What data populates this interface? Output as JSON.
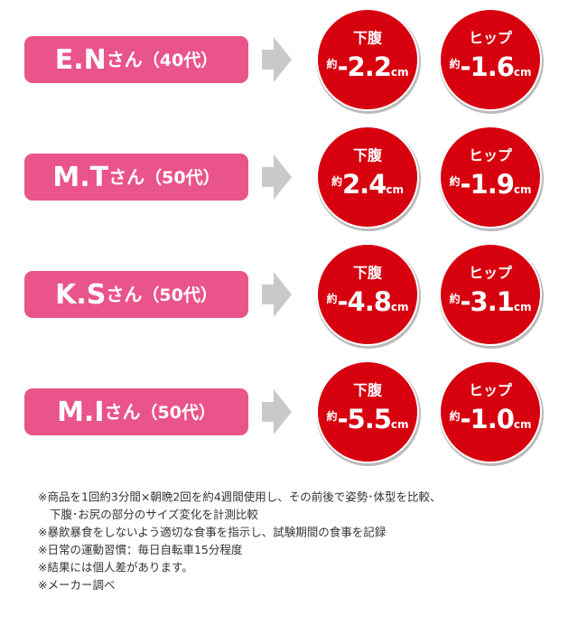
{
  "rows": [
    {
      "name": "E.N",
      "honorific": "さん",
      "age": "（40代）",
      "results": [
        {
          "label": "下腹",
          "prefix": "約",
          "value": "-2.2",
          "unit": "cm"
        },
        {
          "label": "ヒップ",
          "prefix": "約",
          "value": "-1.6",
          "unit": "cm"
        }
      ]
    },
    {
      "name": "M.T",
      "honorific": "さん",
      "age": "（50代）",
      "results": [
        {
          "label": "下腹",
          "prefix": "約",
          "value": "2.4",
          "unit": "cm"
        },
        {
          "label": "ヒップ",
          "prefix": "約",
          "value": "-1.9",
          "unit": "cm"
        }
      ]
    },
    {
      "name": "K.S",
      "honorific": "さん",
      "age": "（50代）",
      "results": [
        {
          "label": "下腹",
          "prefix": "約",
          "value": "-4.8",
          "unit": "cm"
        },
        {
          "label": "ヒップ",
          "prefix": "約",
          "value": "-3.1",
          "unit": "cm"
        }
      ]
    },
    {
      "name": "M.I",
      "honorific": "さん",
      "age": "（50代）",
      "results": [
        {
          "label": "下腹",
          "prefix": "約",
          "value": "-5.5",
          "unit": "cm"
        },
        {
          "label": "ヒップ",
          "prefix": "約",
          "value": "-1.0",
          "unit": "cm"
        }
      ]
    }
  ],
  "notes": [
    "※商品を1回約3分間×朝晩2回を約4週間使用し、その前後で姿勢･体型を比較、",
    "下腹･お尻の部分のサイズ変化を計測比較",
    "※暴飲暴食をしないよう適切な食事を指示し、試験期間の食事を記録",
    "※日常の運動習慣：毎日自転車15分程度",
    "※結果には個人差があります。",
    "※メーカー調べ"
  ]
}
